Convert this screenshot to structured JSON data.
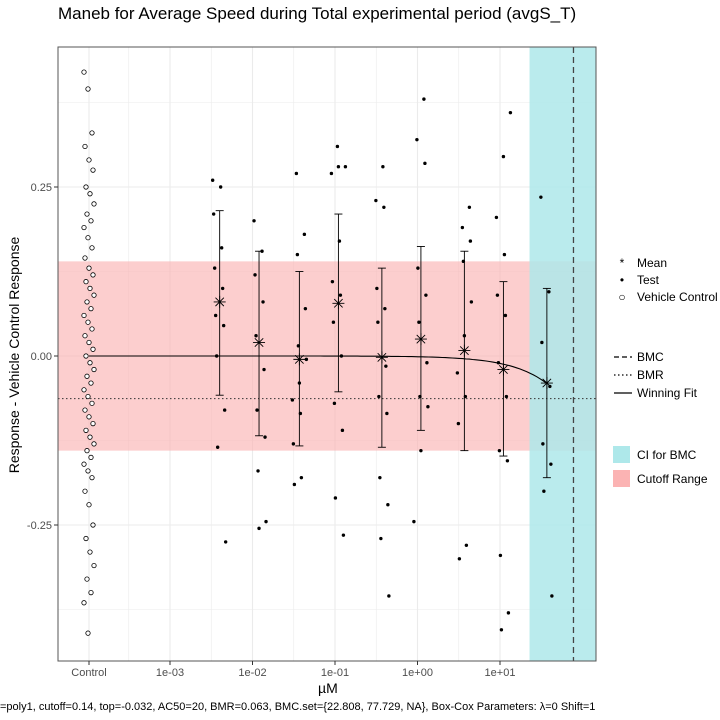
{
  "chart_data": {
    "type": "scatter",
    "title": "Maneb for Average Speed during Total experimental period (avgS_T)",
    "xlabel": "µM",
    "ylabel": "Response - Vehicle Control Response",
    "caption": "=poly1, cutoff=0.14, top=-0.032, AC50=20, BMR=0.063, BMC.set={22.808, 77.729, NA}, Box-Cox Parameters: λ=0 Shift=1",
    "x_scale": "log10",
    "x_ticks": [
      {
        "label": "Control",
        "value": null
      },
      {
        "label": "1e-03",
        "value": 0.001
      },
      {
        "label": "1e-02",
        "value": 0.01
      },
      {
        "label": "1e-01",
        "value": 0.1
      },
      {
        "label": "1e+00",
        "value": 1
      },
      {
        "label": "1e+01",
        "value": 10
      }
    ],
    "y_ticks": [
      {
        "label": "0.25",
        "value": 0.25
      },
      {
        "label": "0.00",
        "value": 0
      },
      {
        "label": "-0.25",
        "value": -0.25
      }
    ],
    "ylim": [
      -0.45,
      0.46
    ],
    "xlim_log10": [
      -3.8,
      1.3
    ],
    "grid": true,
    "cutoff": 0.14,
    "bmr": -0.063,
    "bmc": 77.729,
    "ci_for_bmc": [
      22.808,
      200
    ],
    "concentrations": [
      0.004,
      0.012,
      0.037,
      0.11,
      0.37,
      1.1,
      3.7,
      11,
      37
    ],
    "means": [
      0.08,
      0.02,
      -0.005,
      0.078,
      -0.002,
      0.025,
      0.008,
      -0.02,
      -0.04
    ],
    "error_low": [
      -0.058,
      -0.118,
      -0.133,
      -0.053,
      -0.135,
      -0.11,
      -0.14,
      -0.148,
      -0.18
    ],
    "error_high": [
      0.215,
      0.155,
      0.125,
      0.21,
      0.13,
      0.162,
      0.155,
      0.11,
      0.1
    ],
    "test_points": [
      [
        0.26,
        0.25,
        0.21,
        0.16,
        0.13,
        0.1,
        0.06,
        0.045,
        0.0,
        -0.08,
        -0.135,
        -0.275
      ],
      [
        0.2,
        0.155,
        0.12,
        0.08,
        0.03,
        -0.02,
        -0.08,
        -0.12,
        -0.17,
        -0.245,
        -0.255
      ],
      [
        0.27,
        0.18,
        0.15,
        0.07,
        0.015,
        -0.005,
        -0.04,
        -0.065,
        -0.085,
        -0.13,
        -0.18,
        -0.19
      ],
      [
        0.31,
        0.28,
        0.28,
        0.27,
        0.17,
        0.11,
        0.09,
        0.05,
        0.0,
        -0.07,
        -0.11,
        -0.21,
        -0.265
      ],
      [
        0.28,
        0.23,
        0.22,
        0.1,
        0.07,
        0.05,
        -0.015,
        -0.06,
        -0.085,
        -0.18,
        -0.22,
        -0.27,
        -0.355
      ],
      [
        0.38,
        0.32,
        0.285,
        0.13,
        0.09,
        0.05,
        -0.01,
        -0.06,
        -0.075,
        -0.14,
        -0.245
      ],
      [
        0.22,
        0.19,
        0.17,
        0.14,
        0.08,
        0.03,
        -0.025,
        -0.06,
        -0.1,
        -0.28,
        -0.3
      ],
      [
        0.36,
        0.295,
        0.205,
        0.15,
        0.09,
        0.06,
        -0.01,
        -0.06,
        -0.14,
        -0.155,
        -0.295,
        -0.38,
        -0.405
      ],
      [
        0.235,
        0.095,
        0.02,
        -0.045,
        -0.13,
        -0.16,
        -0.2,
        -0.355
      ]
    ],
    "control_points": [
      0.42,
      0.395,
      0.33,
      0.31,
      0.29,
      0.275,
      0.25,
      0.24,
      0.225,
      0.21,
      0.2,
      0.19,
      0.175,
      0.16,
      0.145,
      0.13,
      0.12,
      0.11,
      0.1,
      0.09,
      0.08,
      0.07,
      0.06,
      0.05,
      0.04,
      0.03,
      0.02,
      0.01,
      0.0,
      -0.01,
      -0.02,
      -0.03,
      -0.04,
      -0.05,
      -0.06,
      -0.07,
      -0.08,
      -0.09,
      -0.1,
      -0.11,
      -0.12,
      -0.13,
      -0.14,
      -0.15,
      -0.16,
      -0.17,
      -0.18,
      -0.2,
      -0.22,
      -0.25,
      -0.27,
      -0.29,
      -0.31,
      -0.33,
      -0.35,
      -0.365,
      -0.41
    ],
    "legend": {
      "shapes": [
        {
          "symbol": "*",
          "label": "Mean"
        },
        {
          "symbol": "•",
          "label": "Test"
        },
        {
          "symbol": "○",
          "label": "Vehicle Control"
        }
      ],
      "lines": [
        {
          "style": "dashed",
          "label": "BMC"
        },
        {
          "style": "dotted",
          "label": "BMR"
        },
        {
          "style": "solid",
          "label": "Winning Fit"
        }
      ],
      "fills": [
        {
          "color": "#aee8ea",
          "label": "CI for BMC"
        },
        {
          "color": "#fbb3b3",
          "label": "Cutoff Range"
        }
      ]
    },
    "colors": {
      "ci_band": "#aee8ea",
      "cutoff_band": "#fbb3b3",
      "panel_border": "#555555"
    }
  }
}
